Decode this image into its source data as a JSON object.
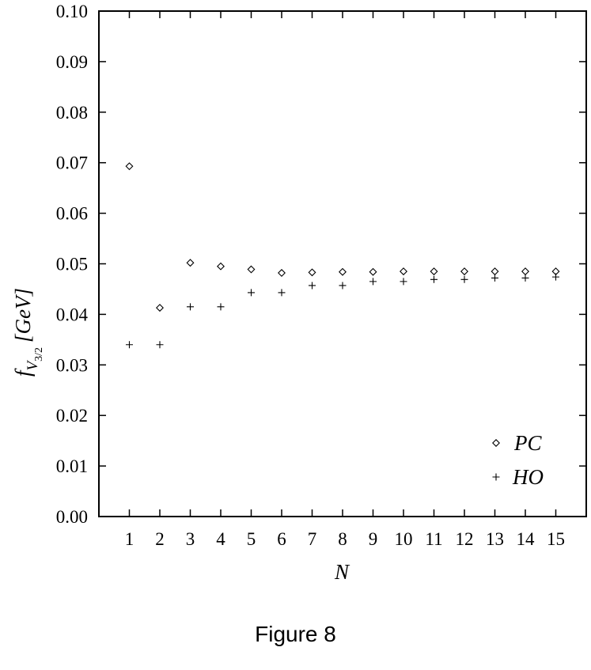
{
  "caption": "Figure 8",
  "chart_data": {
    "type": "scatter",
    "title": "",
    "xlabel": "N",
    "ylabel_main": "f",
    "ylabel_sub": "V",
    "ylabel_subsub": "3/2",
    "ylabel_unit": "[GeV]",
    "xlim": [
      0,
      16
    ],
    "ylim": [
      0,
      0.1
    ],
    "x_ticks": [
      1,
      2,
      3,
      4,
      5,
      6,
      7,
      8,
      9,
      10,
      11,
      12,
      13,
      14,
      15
    ],
    "y_ticks": [
      0.0,
      0.01,
      0.02,
      0.03,
      0.04,
      0.05,
      0.06,
      0.07,
      0.08,
      0.09,
      0.1
    ],
    "y_tick_labels": [
      "0.00",
      "0.01",
      "0.02",
      "0.03",
      "0.04",
      "0.05",
      "0.06",
      "0.07",
      "0.08",
      "0.09",
      "0.10"
    ],
    "grid": false,
    "legend_position": "bottom-right",
    "series": [
      {
        "name": "PC",
        "marker": "diamond",
        "x": [
          1,
          2,
          3,
          4,
          5,
          6,
          7,
          8,
          9,
          10,
          11,
          12,
          13,
          14,
          15
        ],
        "values": [
          0.0693,
          0.0413,
          0.0502,
          0.0495,
          0.0489,
          0.0482,
          0.0483,
          0.0484,
          0.0484,
          0.0485,
          0.0485,
          0.0485,
          0.0485,
          0.0485,
          0.0485
        ]
      },
      {
        "name": "HO",
        "marker": "plus",
        "x": [
          1,
          2,
          3,
          4,
          5,
          6,
          7,
          8,
          9,
          10,
          11,
          12,
          13,
          14,
          15
        ],
        "values": [
          0.034,
          0.034,
          0.0415,
          0.0415,
          0.0443,
          0.0443,
          0.0457,
          0.0457,
          0.0465,
          0.0465,
          0.0469,
          0.0469,
          0.0472,
          0.0472,
          0.0474
        ]
      }
    ]
  }
}
